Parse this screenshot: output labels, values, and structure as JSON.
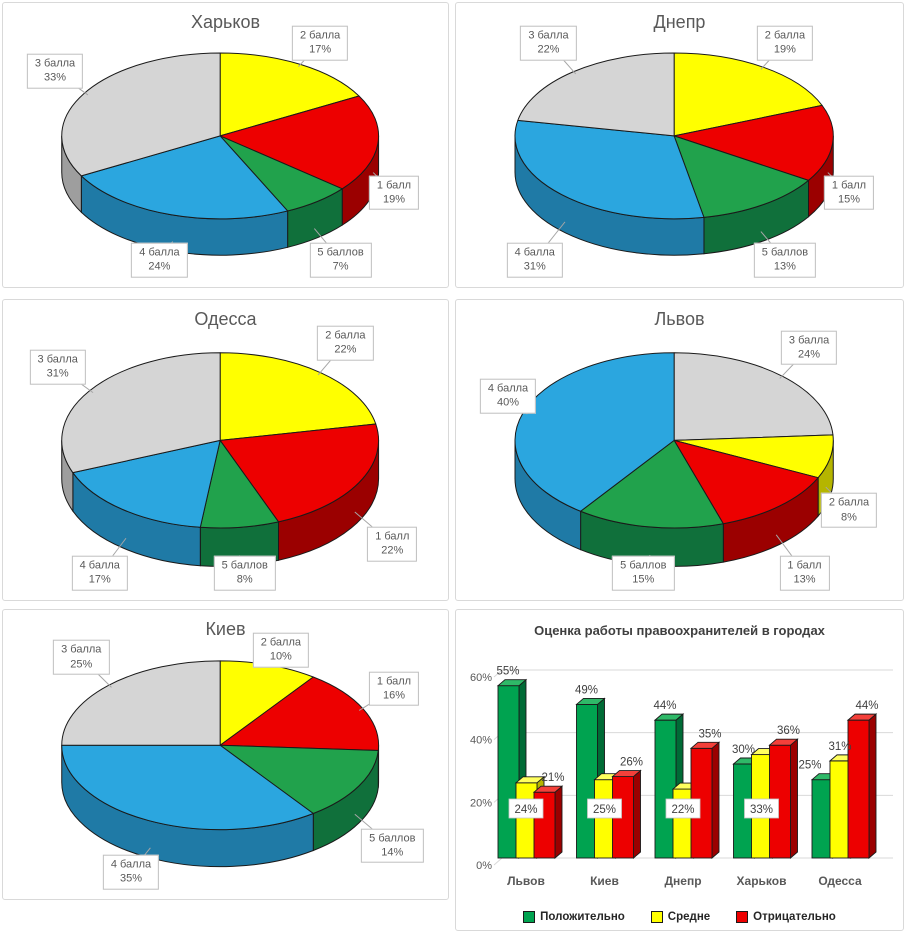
{
  "ui_colors": {
    "title_text": "#595959",
    "axis_text": "#595959",
    "value_label_text": "#3F3F3F",
    "legend_text": "#262626",
    "grid": "#D9D9D9",
    "panel_border": "#D9D9D9",
    "callout_border": "#BFBFBF",
    "leader_line": "#A6A6A6",
    "outline": "#1A1A1A"
  },
  "palette": {
    "sides": {
      "#FFFF00": "#B5B500",
      "#ED0000": "#9B0000",
      "#21A24C": "#10703B",
      "#2BA6DF": "#1F7AA6",
      "#D5D5D5": "#9E9E9E",
      "#00A350": "#006B36"
    },
    "tops": {
      "#00A350": "#2FB968",
      "#FFFF00": "#FFFF5E",
      "#ED0000": "#F4403A"
    }
  },
  "chart_data": [
    {
      "type": "pie",
      "three_d": true,
      "title": "Харьков",
      "labels_style": "outside-callout",
      "start_angle_deg": 0,
      "direction": "clockwise",
      "value_suffix": "%",
      "slices": [
        {
          "label": "2 балла",
          "value": 17,
          "color": "#FFFF00"
        },
        {
          "label": "1 балл",
          "value": 19,
          "color": "#ED0000"
        },
        {
          "label": "5 баллов",
          "value": 7,
          "color": "#21A24C"
        },
        {
          "label": "4 балла",
          "value": 24,
          "color": "#2BA6DF"
        },
        {
          "label": "3 балла",
          "value": 33,
          "color": "#D5D5D5"
        }
      ]
    },
    {
      "type": "pie",
      "three_d": true,
      "title": "Днепр",
      "labels_style": "outside-callout",
      "start_angle_deg": 0,
      "direction": "clockwise",
      "value_suffix": "%",
      "slices": [
        {
          "label": "2 балла",
          "value": 19,
          "color": "#FFFF00"
        },
        {
          "label": "1 балл",
          "value": 15,
          "color": "#ED0000"
        },
        {
          "label": "5 баллов",
          "value": 13,
          "color": "#21A24C"
        },
        {
          "label": "4 балла",
          "value": 31,
          "color": "#2BA6DF"
        },
        {
          "label": "3 балла",
          "value": 22,
          "color": "#D5D5D5"
        }
      ]
    },
    {
      "type": "pie",
      "three_d": true,
      "title": "Одесса",
      "labels_style": "outside-callout",
      "start_angle_deg": 0,
      "direction": "clockwise",
      "value_suffix": "%",
      "slices": [
        {
          "label": "2 балла",
          "value": 22,
          "color": "#FFFF00"
        },
        {
          "label": "1 балл",
          "value": 22,
          "color": "#ED0000"
        },
        {
          "label": "5 баллов",
          "value": 8,
          "color": "#21A24C"
        },
        {
          "label": "4 балла",
          "value": 17,
          "color": "#2BA6DF"
        },
        {
          "label": "3 балла",
          "value": 31,
          "color": "#D5D5D5"
        }
      ]
    },
    {
      "type": "pie",
      "three_d": true,
      "title": "Львов",
      "labels_style": "outside-callout",
      "start_angle_deg": 0,
      "direction": "clockwise",
      "value_suffix": "%",
      "slices": [
        {
          "label": "3 балла",
          "value": 24,
          "color": "#D5D5D5"
        },
        {
          "label": "2 балла",
          "value": 8,
          "color": "#FFFF00"
        },
        {
          "label": "1 балл",
          "value": 13,
          "color": "#ED0000"
        },
        {
          "label": "5 баллов",
          "value": 15,
          "color": "#21A24C"
        },
        {
          "label": "4 балла",
          "value": 40,
          "color": "#2BA6DF"
        }
      ]
    },
    {
      "type": "pie",
      "three_d": true,
      "title": "Киев",
      "labels_style": "outside-callout",
      "start_angle_deg": 0,
      "direction": "clockwise",
      "value_suffix": "%",
      "slices": [
        {
          "label": "2 балла",
          "value": 10,
          "color": "#FFFF00"
        },
        {
          "label": "1 балл",
          "value": 16,
          "color": "#ED0000"
        },
        {
          "label": "5 баллов",
          "value": 14,
          "color": "#21A24C"
        },
        {
          "label": "4 балла",
          "value": 35,
          "color": "#2BA6DF"
        },
        {
          "label": "3 балла",
          "value": 25,
          "color": "#D5D5D5"
        }
      ]
    },
    {
      "type": "bar",
      "three_d": true,
      "title": "Оценка работы правоохранителей в городах",
      "categories": [
        "Львов",
        "Киев",
        "Днепр",
        "Харьков",
        "Одесса"
      ],
      "series": [
        {
          "name": "Положительно",
          "color": "#00A350",
          "values": [
            55,
            49,
            44,
            30,
            25
          ]
        },
        {
          "name": "Средне",
          "color": "#FFFF00",
          "values": [
            24,
            25,
            22,
            33,
            31
          ]
        },
        {
          "name": "Отрицательно",
          "color": "#ED0000",
          "values": [
            21,
            26,
            35,
            36,
            44
          ]
        }
      ],
      "y_ticks": [
        "0%",
        "20%",
        "40%",
        "60%"
      ],
      "ylim": [
        0,
        60
      ],
      "gridlines": true,
      "legend_position": "bottom",
      "value_suffix": "%",
      "label_hints": {
        "boxed_series_index": 1,
        "boxed": [
          true,
          true,
          true,
          true,
          false
        ],
        "green_dx": [
          0,
          0,
          0,
          0,
          -12
        ]
      }
    }
  ]
}
